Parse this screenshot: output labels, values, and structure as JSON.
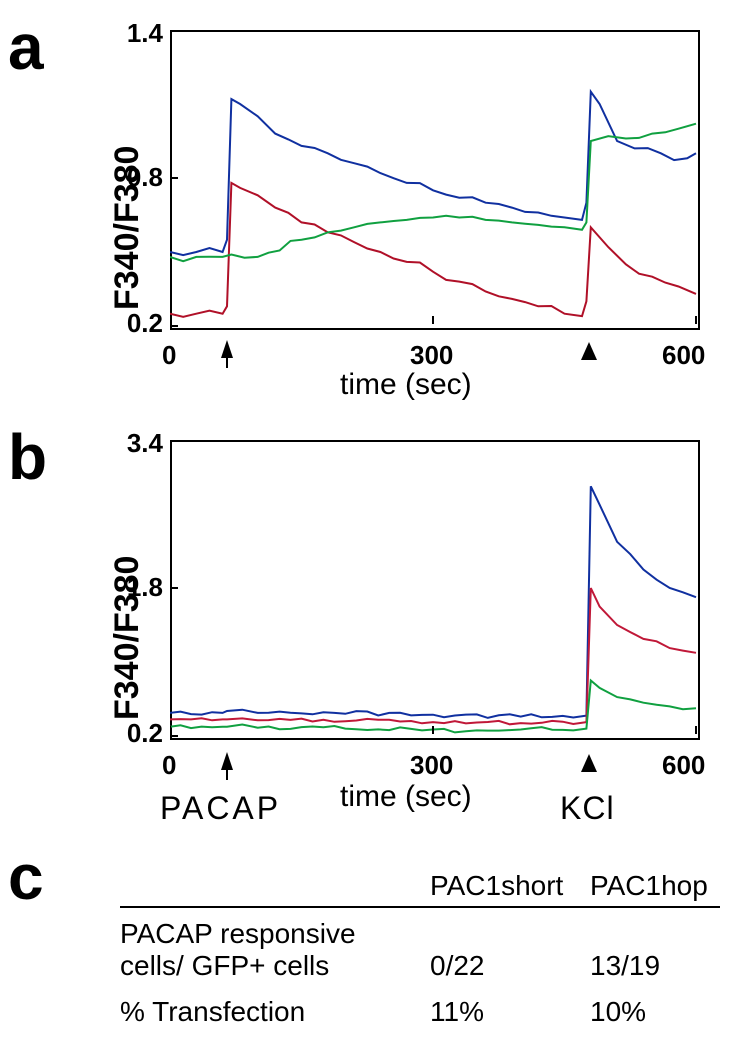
{
  "panel_a": {
    "label": "a",
    "type": "line",
    "ylabel": "F340/F380",
    "xlabel": "time (sec)",
    "title_fontsize": 34,
    "label_fontsize": 30,
    "tick_fontsize": 26,
    "xlim": [
      0,
      600
    ],
    "ylim": [
      0.2,
      1.4
    ],
    "xticks": [
      0,
      300,
      600
    ],
    "yticks": [
      0.2,
      0.8,
      1.4
    ],
    "background_color": "#2d4db3",
    "inner_background": "#ffffff",
    "border_color": "#000000",
    "linewidth": 2,
    "series": [
      {
        "name": "blue",
        "color": "#1030a0",
        "x": [
          0,
          30,
          60,
          65,
          70,
          80,
          100,
          120,
          150,
          180,
          210,
          240,
          270,
          300,
          330,
          360,
          390,
          420,
          450,
          470,
          475,
          480,
          490,
          510,
          530,
          560,
          590,
          600
        ],
        "y": [
          0.5,
          0.5,
          0.5,
          0.55,
          1.12,
          1.1,
          1.05,
          0.98,
          0.93,
          0.9,
          0.86,
          0.82,
          0.78,
          0.75,
          0.72,
          0.7,
          0.68,
          0.66,
          0.64,
          0.63,
          0.7,
          1.15,
          1.1,
          0.95,
          0.92,
          0.9,
          0.88,
          0.9
        ]
      },
      {
        "name": "red",
        "color": "#b01028",
        "x": [
          0,
          30,
          60,
          65,
          70,
          80,
          100,
          120,
          150,
          180,
          210,
          240,
          270,
          300,
          330,
          360,
          390,
          420,
          450,
          470,
          475,
          480,
          500,
          520,
          550,
          580,
          600
        ],
        "y": [
          0.25,
          0.25,
          0.25,
          0.28,
          0.78,
          0.76,
          0.73,
          0.68,
          0.62,
          0.58,
          0.54,
          0.5,
          0.46,
          0.42,
          0.38,
          0.34,
          0.31,
          0.28,
          0.25,
          0.24,
          0.3,
          0.6,
          0.52,
          0.45,
          0.4,
          0.36,
          0.33
        ]
      },
      {
        "name": "green",
        "color": "#10a040",
        "x": [
          0,
          30,
          60,
          70,
          100,
          150,
          180,
          210,
          240,
          270,
          300,
          330,
          360,
          390,
          420,
          450,
          470,
          475,
          480,
          500,
          520,
          550,
          580,
          600
        ],
        "y": [
          0.48,
          0.48,
          0.48,
          0.49,
          0.48,
          0.55,
          0.58,
          0.6,
          0.62,
          0.63,
          0.64,
          0.64,
          0.63,
          0.62,
          0.61,
          0.6,
          0.59,
          0.62,
          0.95,
          0.97,
          0.96,
          0.98,
          1.0,
          1.02
        ]
      }
    ],
    "markers": [
      {
        "kind": "arrow",
        "x": 65
      },
      {
        "kind": "triangle",
        "x": 475
      }
    ]
  },
  "panel_b": {
    "label": "b",
    "type": "line",
    "ylabel": "F340/F380",
    "xlabel": "time (sec)",
    "title_fontsize": 34,
    "label_fontsize": 30,
    "tick_fontsize": 26,
    "xlim": [
      0,
      600
    ],
    "ylim": [
      0.2,
      3.4
    ],
    "xticks": [
      0,
      300,
      600
    ],
    "yticks": [
      0.2,
      1.8,
      3.4
    ],
    "background_color": "#2d4db3",
    "inner_background": "#ffffff",
    "border_color": "#000000",
    "linewidth": 2,
    "series": [
      {
        "name": "blue",
        "color": "#1030a0",
        "x": [
          0,
          60,
          65,
          100,
          200,
          300,
          400,
          460,
          475,
          480,
          490,
          510,
          540,
          570,
          600
        ],
        "y": [
          0.45,
          0.45,
          0.47,
          0.45,
          0.44,
          0.43,
          0.41,
          0.4,
          0.42,
          2.9,
          2.7,
          2.3,
          2.0,
          1.8,
          1.7
        ]
      },
      {
        "name": "red",
        "color": "#c01838",
        "x": [
          0,
          60,
          65,
          100,
          200,
          300,
          400,
          460,
          475,
          480,
          490,
          510,
          540,
          570,
          600
        ],
        "y": [
          0.38,
          0.38,
          0.38,
          0.37,
          0.36,
          0.35,
          0.34,
          0.33,
          0.35,
          1.8,
          1.6,
          1.4,
          1.25,
          1.15,
          1.1
        ]
      },
      {
        "name": "green",
        "color": "#10a040",
        "x": [
          0,
          60,
          65,
          100,
          200,
          300,
          400,
          460,
          475,
          480,
          490,
          510,
          540,
          570,
          600
        ],
        "y": [
          0.3,
          0.3,
          0.3,
          0.29,
          0.28,
          0.27,
          0.27,
          0.26,
          0.28,
          0.8,
          0.72,
          0.62,
          0.56,
          0.52,
          0.5
        ]
      }
    ],
    "markers": [
      {
        "kind": "arrow",
        "x": 65,
        "label": "PACAP"
      },
      {
        "kind": "triangle",
        "x": 475,
        "label": "KCl"
      }
    ]
  },
  "panel_c": {
    "label": "c",
    "type": "table",
    "columns": [
      "",
      "PAC1short",
      "PAC1hop"
    ],
    "rows": [
      [
        "PACAP responsive\ncells/ GFP+ cells",
        "0/22",
        "13/19"
      ],
      [
        "% Transfection",
        "11%",
        "10%"
      ]
    ],
    "fontsize": 28,
    "border_color": "#000000"
  },
  "marker_labels": {
    "pacap": "PACAP",
    "kcl": "KCl"
  }
}
